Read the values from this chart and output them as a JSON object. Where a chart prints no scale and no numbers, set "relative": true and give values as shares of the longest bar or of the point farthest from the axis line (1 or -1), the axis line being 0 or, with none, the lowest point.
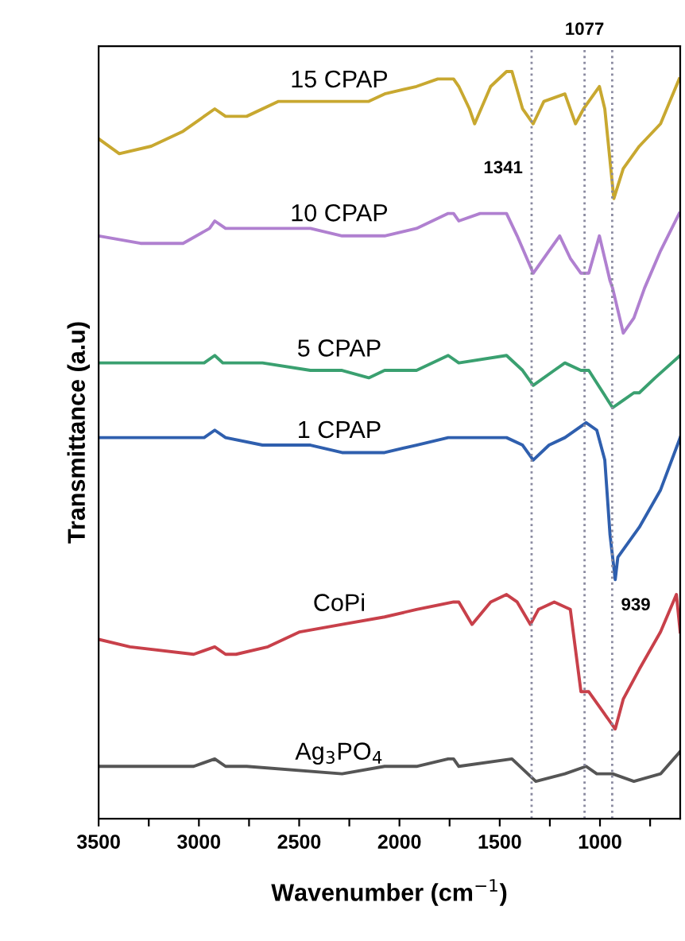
{
  "chart_data": {
    "type": "line",
    "relative": true,
    "xlabel": "Wavenumber (cm$^{−1}$)",
    "ylabel": "Transmittance (a.u)",
    "xlim": [
      3500,
      600
    ],
    "xticks": [
      3500,
      {
        "value": 3250,
        "label": null
      },
      3000,
      {
        "value": 2750,
        "label": null
      },
      2500,
      {
        "value": 2250,
        "label": null
      },
      2000,
      {
        "value": 1750,
        "label": null
      },
      1500,
      {
        "value": 1250,
        "label": null
      },
      1000,
      {
        "value": 750,
        "label": null
      }
    ],
    "tick_labels": "x",
    "legend": false,
    "grid": false,
    "line_style": "solid",
    "marker": "none",
    "series": [
      {
        "name": "15 CPAP",
        "color": "#c8a830",
        "x": [
          3500,
          3397,
          3238,
          3079,
          2921,
          2867,
          2762,
          2603,
          2444,
          2286,
          2153,
          2074,
          1915,
          1809,
          1730,
          1704,
          1651,
          1625,
          1545,
          1466,
          1439,
          1386,
          1333,
          1280,
          1175,
          1122,
          1082,
          1056,
          1003,
          976,
          931,
          884,
          804,
          698,
          605
        ],
        "values": [
          0.91,
          0.89,
          0.9,
          0.92,
          0.95,
          0.94,
          0.94,
          0.96,
          0.96,
          0.96,
          0.96,
          0.97,
          0.98,
          0.99,
          0.99,
          0.98,
          0.95,
          0.93,
          0.98,
          1.0,
          1.0,
          0.95,
          0.93,
          0.96,
          0.97,
          0.93,
          0.95,
          0.96,
          0.98,
          0.95,
          0.83,
          0.87,
          0.9,
          0.93,
          0.99
        ]
      },
      {
        "name": "10 CPAP",
        "color": "#b080d0",
        "x": [
          3500,
          3291,
          3079,
          2947,
          2921,
          2867,
          2762,
          2444,
          2286,
          2153,
          2074,
          1915,
          1757,
          1730,
          1704,
          1598,
          1466,
          1413,
          1333,
          1254,
          1201,
          1148,
          1095,
          1056,
          1003,
          950,
          937,
          884,
          831,
          778,
          698,
          605
        ],
        "values": [
          0.78,
          0.77,
          0.77,
          0.79,
          0.8,
          0.79,
          0.79,
          0.79,
          0.78,
          0.78,
          0.78,
          0.79,
          0.81,
          0.81,
          0.8,
          0.81,
          0.81,
          0.78,
          0.73,
          0.76,
          0.78,
          0.75,
          0.73,
          0.73,
          0.78,
          0.72,
          0.71,
          0.65,
          0.67,
          0.71,
          0.76,
          0.81
        ]
      },
      {
        "name": "5 CPAP",
        "color": "#3aa070",
        "x": [
          3500,
          3238,
          2974,
          2921,
          2881,
          2842,
          2683,
          2444,
          2286,
          2153,
          2074,
          1915,
          1757,
          1704,
          1466,
          1386,
          1333,
          1228,
          1175,
          1095,
          1056,
          937,
          884,
          831,
          804,
          725,
          600
        ],
        "values": [
          0.61,
          0.61,
          0.61,
          0.62,
          0.61,
          0.61,
          0.61,
          0.6,
          0.6,
          0.59,
          0.6,
          0.6,
          0.62,
          0.61,
          0.62,
          0.6,
          0.58,
          0.6,
          0.61,
          0.6,
          0.6,
          0.55,
          0.56,
          0.57,
          0.57,
          0.59,
          0.62
        ]
      },
      {
        "name": "1 CPAP",
        "color": "#2f5fae",
        "x": [
          3500,
          3238,
          2974,
          2921,
          2867,
          2683,
          2444,
          2286,
          2153,
          2074,
          1915,
          1757,
          1704,
          1466,
          1386,
          1333,
          1254,
          1175,
          1069,
          1016,
          976,
          950,
          924,
          911,
          804,
          698,
          600
        ],
        "values": [
          0.51,
          0.51,
          0.51,
          0.52,
          0.51,
          0.5,
          0.5,
          0.49,
          0.49,
          0.49,
          0.5,
          0.51,
          0.51,
          0.51,
          0.5,
          0.48,
          0.5,
          0.51,
          0.53,
          0.52,
          0.48,
          0.38,
          0.32,
          0.35,
          0.39,
          0.44,
          0.51
        ]
      },
      {
        "name": "CoPi",
        "color": "#c8404a",
        "x": [
          3500,
          3344,
          3026,
          2921,
          2867,
          2815,
          2656,
          2497,
          2286,
          2074,
          1915,
          1730,
          1704,
          1638,
          1545,
          1466,
          1413,
          1347,
          1307,
          1228,
          1148,
          1095,
          1056,
          1003,
          924,
          884,
          804,
          698,
          619,
          600
        ],
        "values": [
          0.24,
          0.23,
          0.22,
          0.23,
          0.22,
          0.22,
          0.23,
          0.25,
          0.26,
          0.27,
          0.28,
          0.29,
          0.29,
          0.26,
          0.29,
          0.3,
          0.29,
          0.26,
          0.28,
          0.29,
          0.28,
          0.17,
          0.17,
          0.15,
          0.12,
          0.16,
          0.2,
          0.25,
          0.3,
          0.25
        ]
      },
      {
        "name": "Ag$_{3}$PO$_{4}$",
        "color": "#555555",
        "x": [
          3500,
          3026,
          2921,
          2867,
          2815,
          2762,
          2286,
          2074,
          1915,
          1757,
          1730,
          1704,
          1439,
          1320,
          1175,
          1069,
          1016,
          937,
          831,
          698,
          600
        ],
        "values": [
          0.07,
          0.07,
          0.08,
          0.07,
          0.07,
          0.07,
          0.06,
          0.07,
          0.07,
          0.08,
          0.08,
          0.07,
          0.08,
          0.05,
          0.06,
          0.07,
          0.06,
          0.06,
          0.05,
          0.06,
          0.09
        ]
      }
    ],
    "ref_lines": [
      {
        "axis": "x",
        "value": 1341,
        "color": "#8a8aa0",
        "line_style": "dotted"
      },
      {
        "axis": "x",
        "value": 1077,
        "color": "#8a8aa0",
        "line_style": "dotted",
        "label": "1077"
      },
      {
        "axis": "x",
        "value": 939,
        "color": "#8a8aa0",
        "line_style": "dotted"
      }
    ],
    "annotations": [
      {
        "text": "1341",
        "x": 1341,
        "y": 0.87
      },
      {
        "text": "939",
        "x": 939,
        "y": 0.285
      }
    ]
  }
}
